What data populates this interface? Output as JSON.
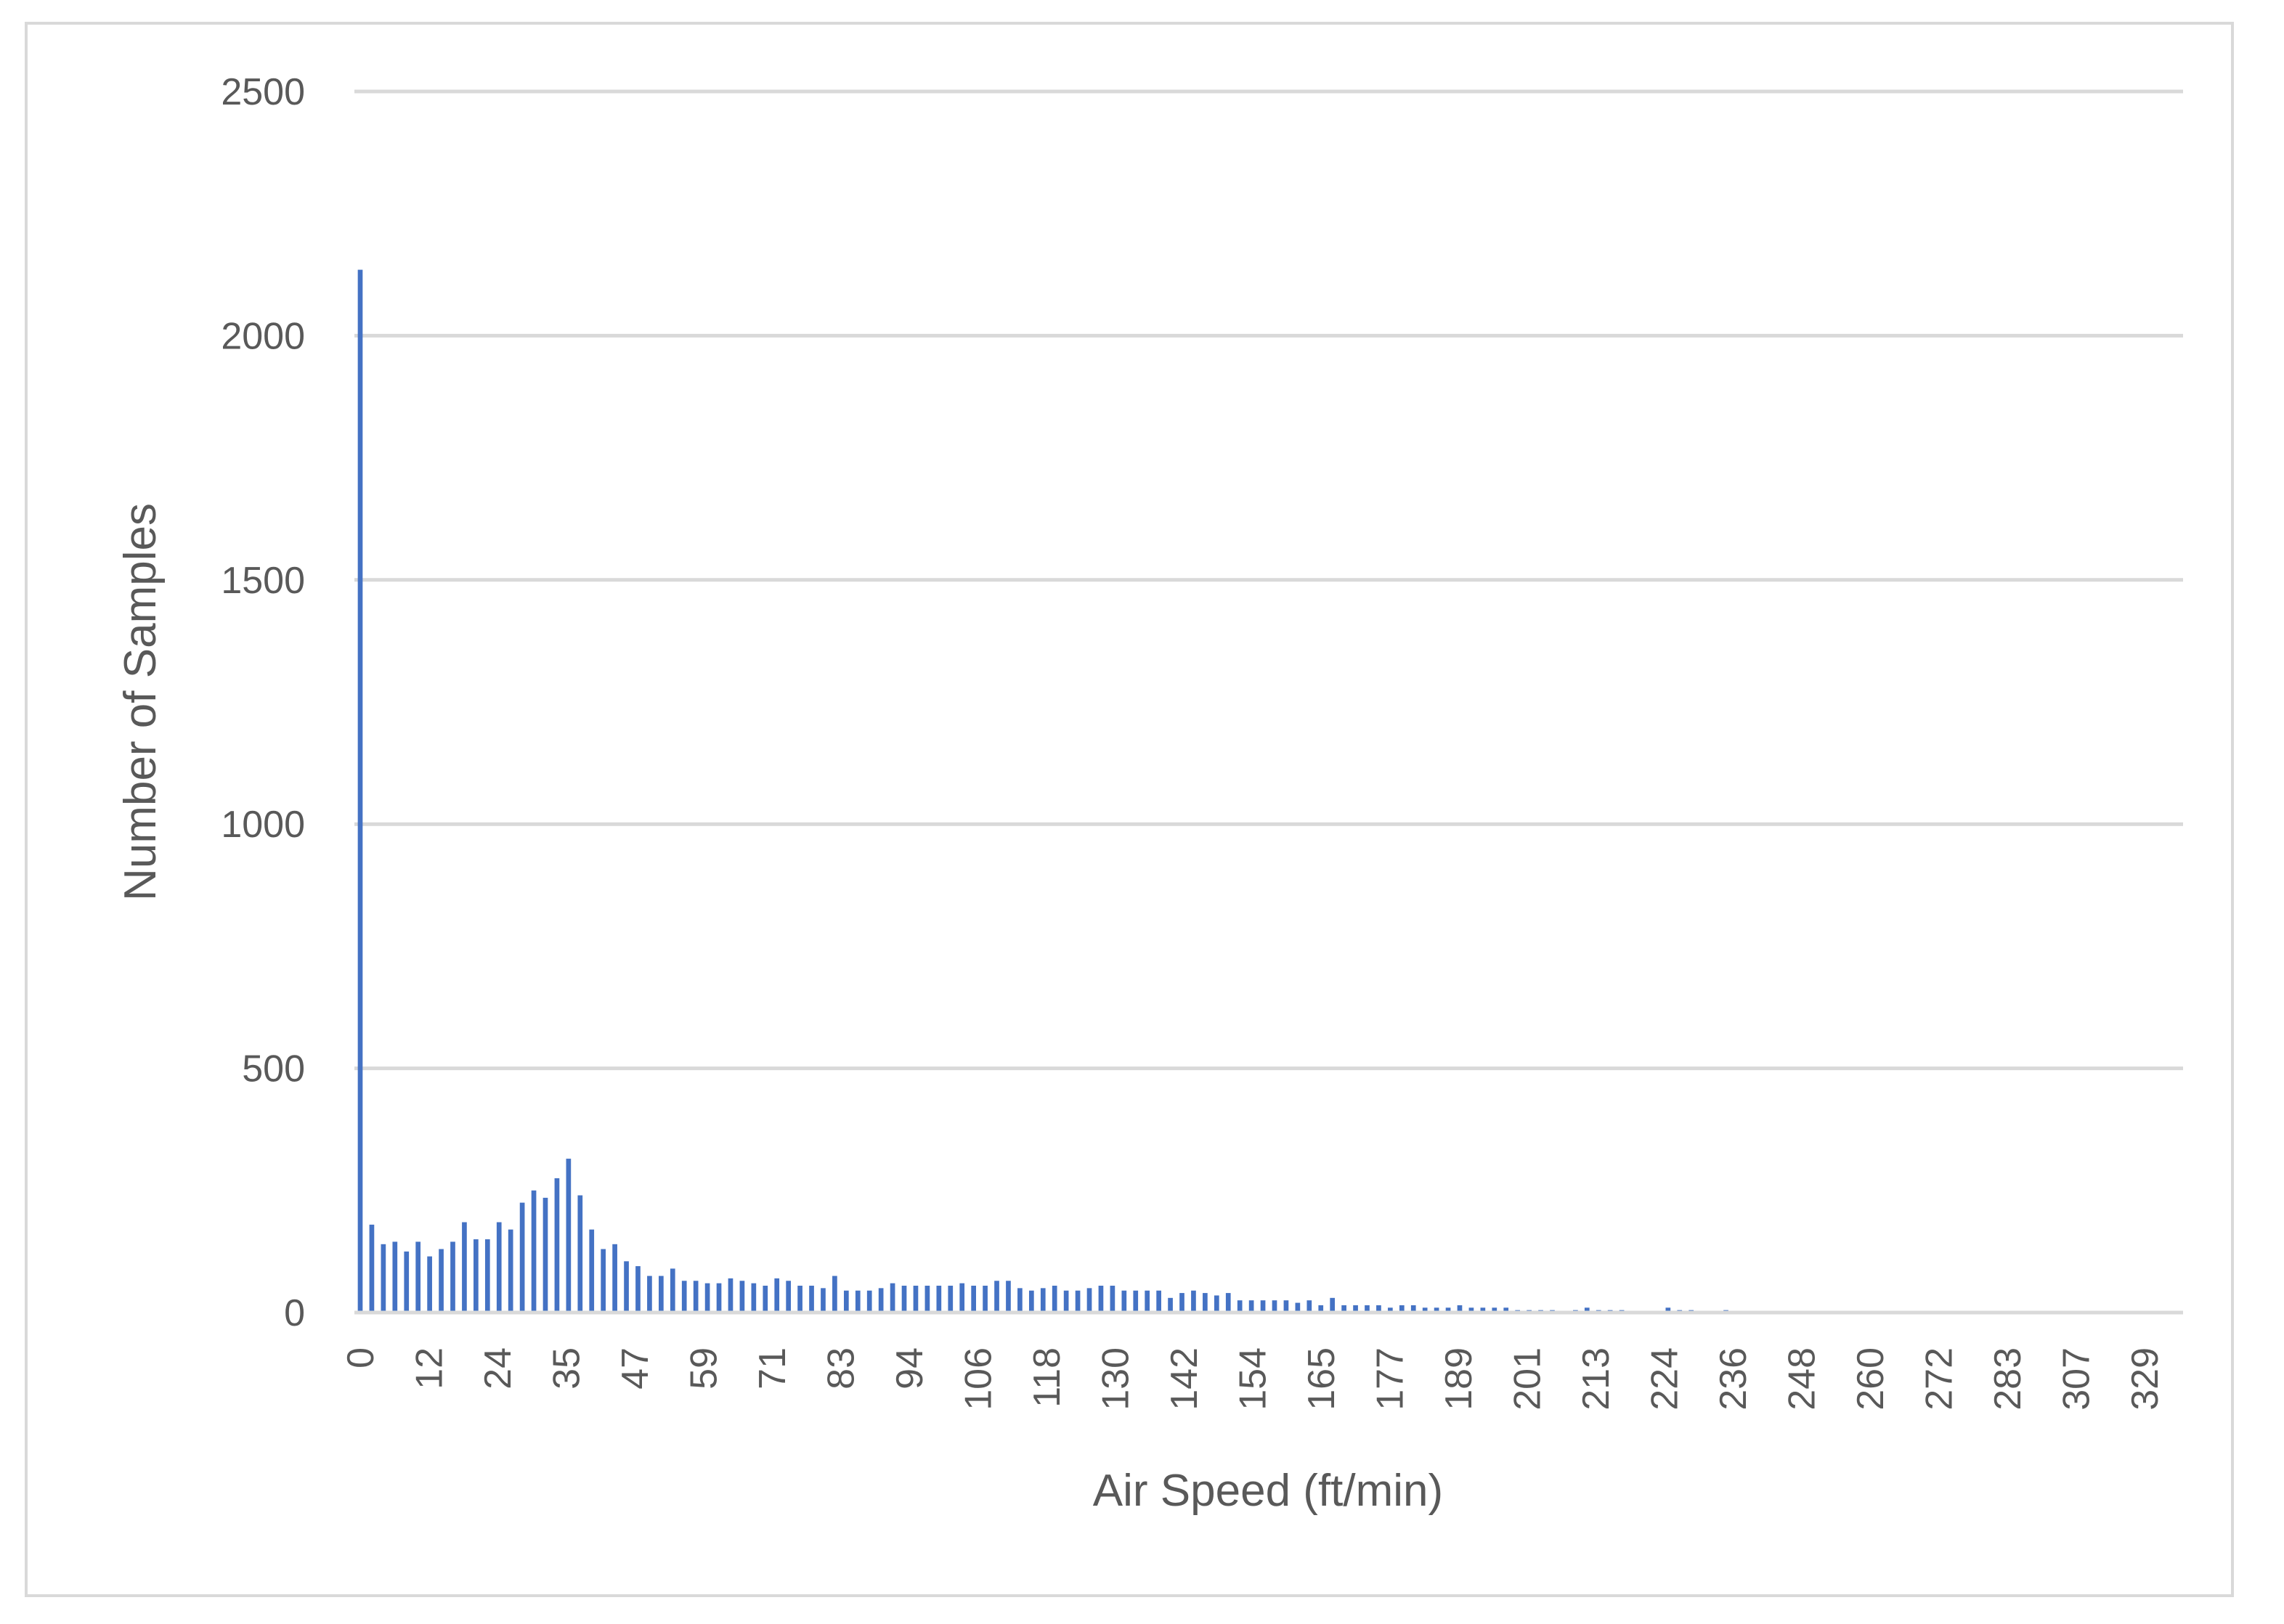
{
  "chart_data": {
    "type": "bar",
    "xlabel": "Air Speed (ft/min)",
    "ylabel": "Number of Samples",
    "ylim": [
      0,
      2500
    ],
    "y_ticks": [
      0,
      500,
      1000,
      1500,
      2000,
      2500
    ],
    "grid": true,
    "legend": "none",
    "x_tick_labels": [
      "0",
      "12",
      "24",
      "35",
      "47",
      "59",
      "71",
      "83",
      "94",
      "106",
      "118",
      "130",
      "142",
      "154",
      "165",
      "177",
      "189",
      "201",
      "213",
      "224",
      "236",
      "248",
      "260",
      "272",
      "283",
      "307",
      "329"
    ],
    "bar_color": "#4472c4",
    "values": [
      2135,
      180,
      140,
      145,
      125,
      145,
      115,
      130,
      145,
      185,
      150,
      150,
      185,
      170,
      225,
      250,
      235,
      275,
      315,
      240,
      170,
      130,
      140,
      105,
      95,
      75,
      75,
      90,
      65,
      65,
      60,
      60,
      70,
      65,
      60,
      55,
      70,
      65,
      55,
      55,
      50,
      75,
      45,
      45,
      45,
      50,
      60,
      55,
      55,
      55,
      55,
      55,
      60,
      55,
      55,
      65,
      65,
      50,
      45,
      50,
      55,
      45,
      45,
      50,
      55,
      55,
      45,
      45,
      45,
      45,
      30,
      40,
      45,
      40,
      35,
      40,
      25,
      25,
      25,
      25,
      25,
      20,
      25,
      15,
      30,
      15,
      15,
      15,
      15,
      10,
      15,
      15,
      10,
      10,
      10,
      15,
      10,
      10,
      10,
      10,
      5,
      5,
      5,
      5,
      0,
      5,
      10,
      5,
      5,
      5,
      0,
      0,
      0,
      10,
      5,
      5,
      0,
      0,
      5,
      0,
      0,
      0,
      0,
      0,
      0,
      0,
      0,
      0,
      0,
      0,
      0,
      0,
      0,
      0,
      0,
      0,
      0,
      0,
      0,
      0,
      0,
      0,
      0,
      0,
      0,
      0,
      0,
      0,
      0,
      0,
      0,
      0,
      0,
      0,
      0,
      0,
      0,
      0
    ]
  }
}
